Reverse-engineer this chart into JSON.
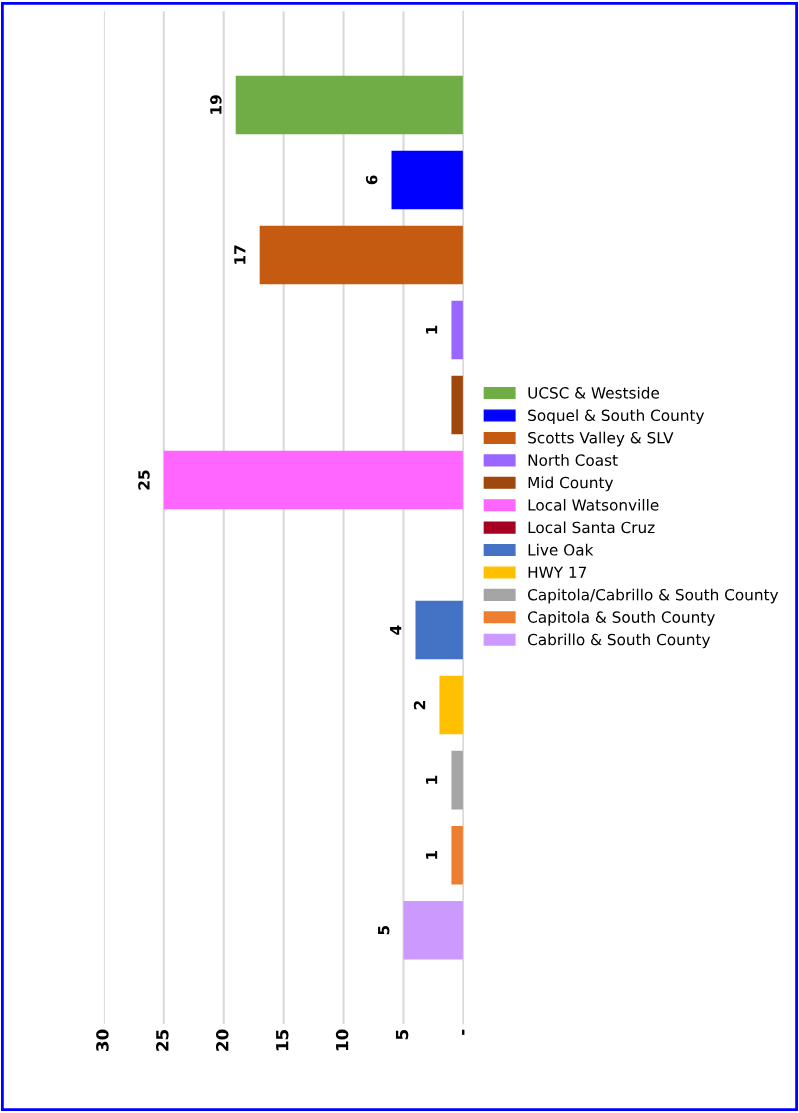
{
  "chart_data": {
    "type": "bar",
    "orientation": "horizontal",
    "categories": [
      null
    ],
    "series": [
      {
        "name": "Cabrillo & South County",
        "color": "#cc99ff",
        "values": [
          5
        ],
        "value_labels": [
          "5"
        ]
      },
      {
        "name": "Capitola & South County",
        "color": "#ed7d31",
        "values": [
          1
        ],
        "value_labels": [
          "1"
        ]
      },
      {
        "name": "Capitola/Cabrillo & South County",
        "color": "#a5a5a5",
        "values": [
          1
        ],
        "value_labels": [
          "1"
        ]
      },
      {
        "name": "HWY 17",
        "color": "#ffc000",
        "values": [
          2
        ],
        "value_labels": [
          "2"
        ]
      },
      {
        "name": "Live Oak",
        "color": "#4472c4",
        "values": [
          4
        ],
        "value_labels": [
          "4"
        ]
      },
      {
        "name": "Local Santa Cruz",
        "color": "#a50021",
        "values": [
          null
        ],
        "value_labels": [
          null
        ]
      },
      {
        "name": "Local Watsonville",
        "color": "#ff66ff",
        "values": [
          25
        ],
        "value_labels": [
          "25"
        ]
      },
      {
        "name": "Mid County",
        "color": "#9e480e",
        "values": [
          1
        ],
        "value_labels": [
          null
        ]
      },
      {
        "name": "North Coast",
        "color": "#9966ff",
        "values": [
          1
        ],
        "value_labels": [
          "1"
        ]
      },
      {
        "name": "Scotts Valley & SLV",
        "color": "#c55a11",
        "values": [
          17
        ],
        "value_labels": [
          "17"
        ]
      },
      {
        "name": "Soquel & South County",
        "color": "#0000ff",
        "values": [
          6
        ],
        "value_labels": [
          "6"
        ]
      },
      {
        "name": "UCSC & Westside",
        "color": "#70ad47",
        "values": [
          19
        ],
        "value_labels": [
          "19"
        ]
      }
    ],
    "xlim": [
      30,
      0
    ],
    "xticks": [
      {
        "value": 0,
        "label": "-"
      },
      5,
      10,
      15,
      20,
      25,
      30
    ],
    "grid": "x",
    "legend": "right",
    "tick_labels": "x"
  }
}
